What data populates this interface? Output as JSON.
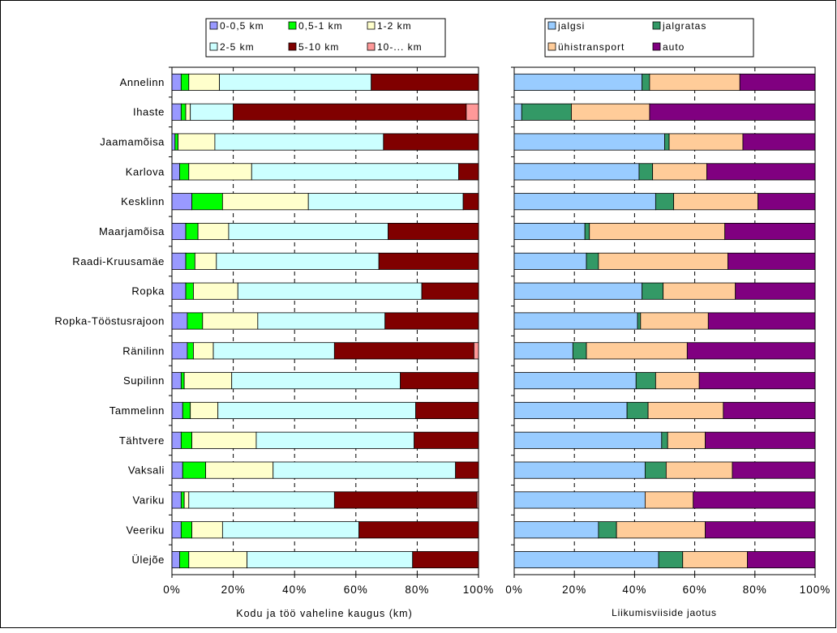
{
  "chart_data": [
    {
      "type": "bar",
      "orientation": "horizontal",
      "stacked": "percent",
      "xlabel": "Kodu ja töö vaheline kaugus (km)",
      "xlim": [
        0,
        100
      ],
      "ticks": [
        "0%",
        "20%",
        "40%",
        "60%",
        "80%",
        "100%"
      ],
      "legend_position": "top",
      "categories": [
        "Annelinn",
        "Ihaste",
        "Jaamamõisa",
        "Karlova",
        "Kesklinn",
        "Maarjamõisa",
        "Raadi-Kruusamäe",
        "Ropka",
        "Ropka-Tööstusrajoon",
        "Ränilinn",
        "Supilinn",
        "Tammelinn",
        "Tähtvere",
        "Vaksali",
        "Variku",
        "Veeriku",
        "Ülejõe"
      ],
      "series": [
        {
          "name": "0-0,5 km",
          "color": "#9999ff",
          "values": [
            3,
            3,
            1,
            2.5,
            6.5,
            4.5,
            4.5,
            4.5,
            5,
            5,
            3,
            3.5,
            3,
            3.5,
            3,
            3,
            2.5
          ]
        },
        {
          "name": "0,5-1 km",
          "color": "#00ff00",
          "values": [
            2.5,
            1.5,
            1,
            3,
            10,
            4,
            3,
            2.5,
            5,
            2,
            1,
            2.5,
            3.5,
            7.5,
            1,
            3.5,
            3
          ]
        },
        {
          "name": "1-2 km",
          "color": "#ffffcc",
          "values": [
            10,
            1.5,
            12,
            20.5,
            28,
            10,
            7,
            14.5,
            18,
            6.5,
            15.5,
            9,
            21,
            22,
            1.5,
            10,
            19
          ]
        },
        {
          "name": "2-5 km",
          "color": "#ccffff",
          "values": [
            49.5,
            14,
            55,
            67.5,
            50.5,
            52,
            53,
            60,
            41.5,
            39.5,
            55,
            64.5,
            51.5,
            59.5,
            47.5,
            44.5,
            54
          ]
        },
        {
          "name": "5-10 km",
          "color": "#800000",
          "values": [
            35,
            76,
            31,
            6.5,
            5,
            29.5,
            32.5,
            18.5,
            30.5,
            45.5,
            25.5,
            20.5,
            21,
            7.5,
            46.5,
            39,
            21.5
          ]
        },
        {
          "name": "10-... km",
          "color": "#ff9999",
          "values": [
            0,
            4,
            0,
            0,
            0,
            0,
            0,
            0,
            0,
            1.5,
            0,
            0,
            0,
            0,
            0.5,
            0,
            0
          ]
        }
      ]
    },
    {
      "type": "bar",
      "orientation": "horizontal",
      "stacked": "percent",
      "xlabel": "Liikumisviiside jaotus",
      "xlim": [
        0,
        100
      ],
      "ticks": [
        "0%",
        "20%",
        "40%",
        "60%",
        "80%",
        "100%"
      ],
      "legend_position": "top",
      "categories": [
        "Annelinn",
        "Ihaste",
        "Jaamamõisa",
        "Karlova",
        "Kesklinn",
        "Maarjamõisa",
        "Raadi-Kruusamäe",
        "Ropka",
        "Ropka-Tööstusrajoon",
        "Ränilinn",
        "Supilinn",
        "Tammelinn",
        "Tähtvere",
        "Vaksali",
        "Variku",
        "Veeriku",
        "Ülejõe"
      ],
      "series": [
        {
          "name": "jalgsi",
          "color": "#99ccff",
          "values": [
            42.5,
            2.5,
            50,
            41.5,
            47,
            23.5,
            24,
            42.5,
            41,
            19.5,
            40.5,
            37.5,
            49,
            43.5,
            43.5,
            28,
            48
          ]
        },
        {
          "name": "jalgratas",
          "color": "#339966",
          "values": [
            2.5,
            16.5,
            1.5,
            4.5,
            6,
            1.5,
            4,
            7,
            1,
            4.5,
            6.5,
            7,
            2,
            7,
            0,
            6,
            8
          ]
        },
        {
          "name": "ühistransport",
          "color": "#ffcc99",
          "values": [
            30,
            26,
            24.5,
            18,
            28,
            45,
            43,
            24,
            22.5,
            33.5,
            14.5,
            25,
            12.5,
            22,
            16,
            29.5,
            21.5
          ]
        },
        {
          "name": "auto",
          "color": "#800080",
          "values": [
            25,
            55,
            24,
            36,
            19,
            30,
            29,
            26.5,
            35.5,
            42.5,
            38.5,
            30.5,
            36.5,
            27.5,
            40.5,
            36.5,
            22.5
          ]
        }
      ]
    }
  ]
}
